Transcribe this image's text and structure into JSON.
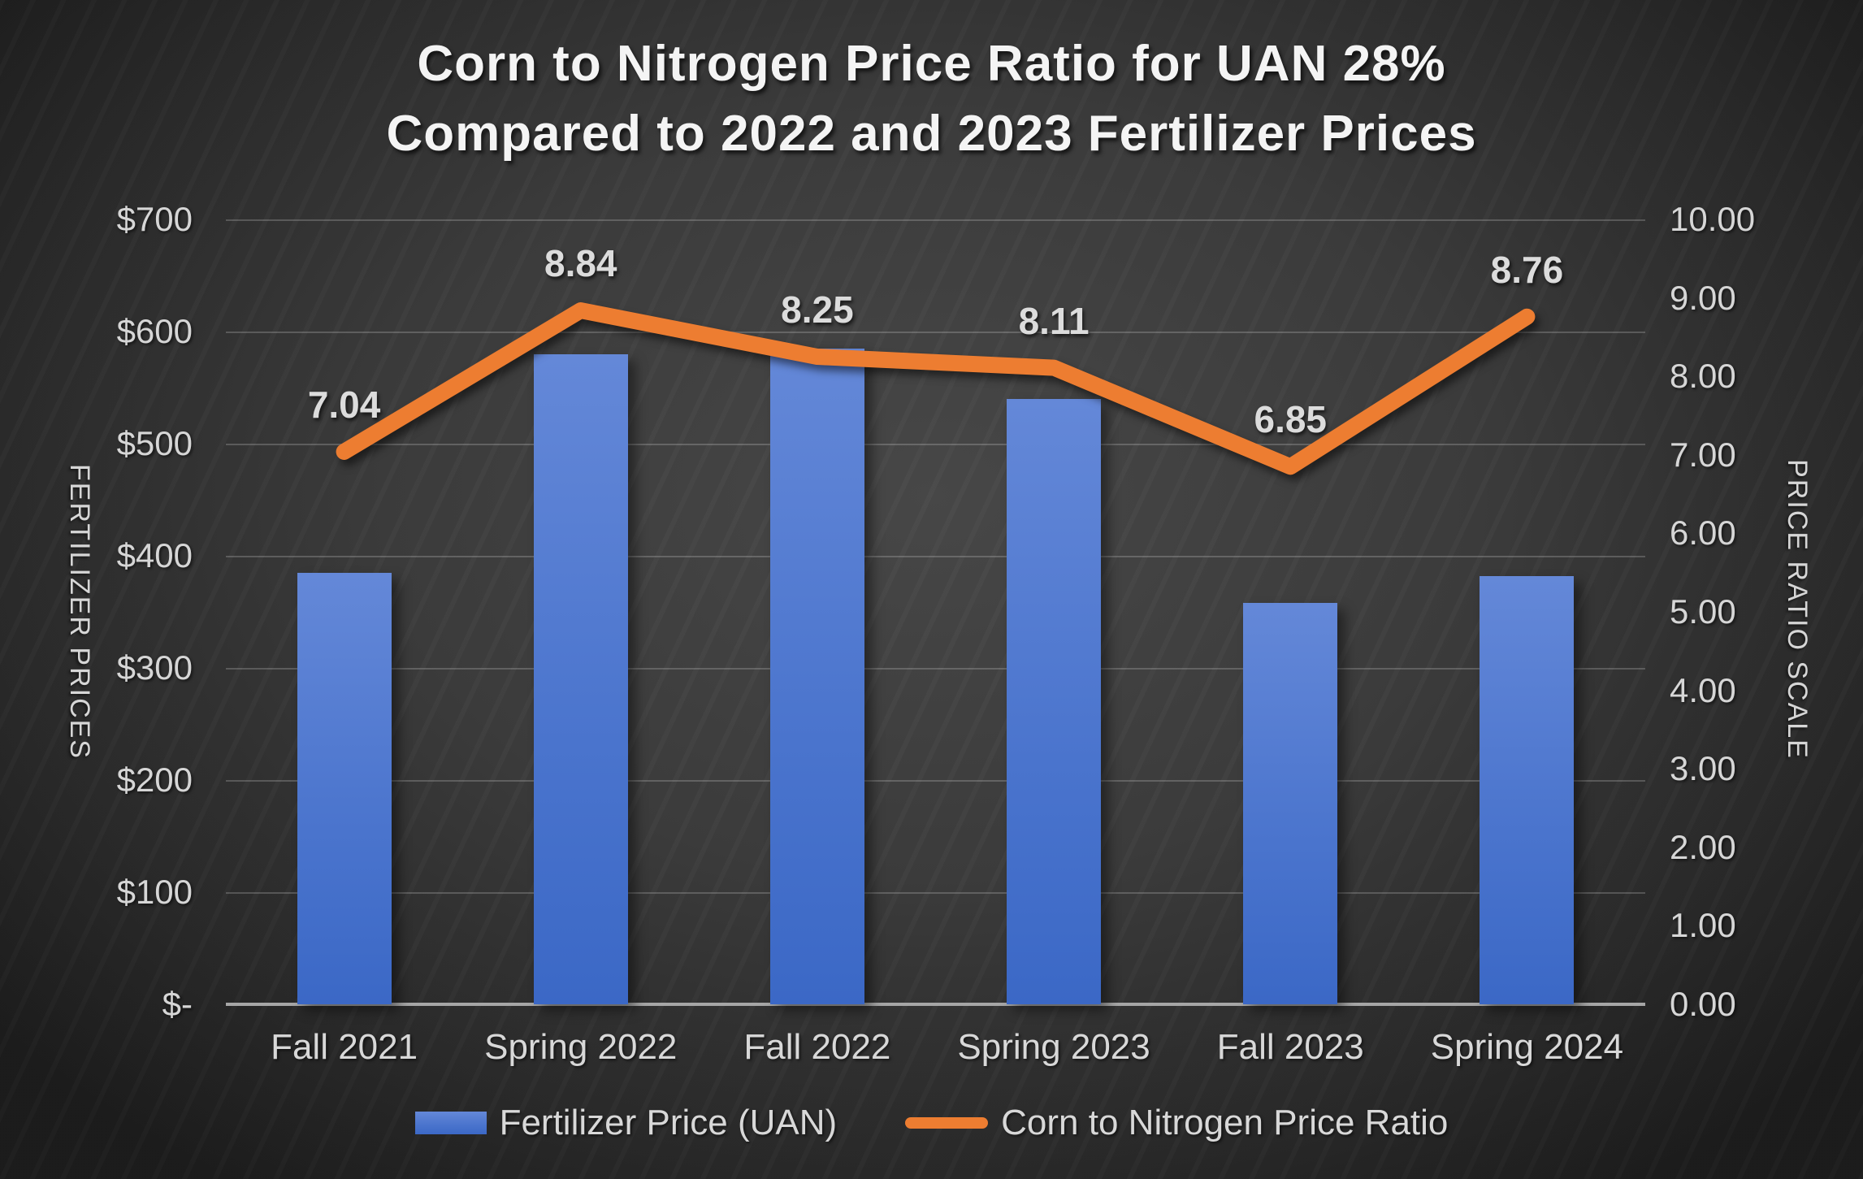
{
  "title": {
    "line1": "Corn to Nitrogen Price Ratio for UAN 28%",
    "line2": "Compared to 2022 and 2023 Fertilizer Prices"
  },
  "colors": {
    "background": "#3c3c3c",
    "bar_fill_top": "#6488d8",
    "bar_fill_bottom": "#3b68c6",
    "line": "#ed7d31",
    "text": "#d6d6d6",
    "title_text": "#f4f4f4",
    "gridline": "rgba(217,217,217,0.24)",
    "axis_line": "#a6a6a6"
  },
  "legend": {
    "items": [
      {
        "label": "Fertilizer Price (UAN)",
        "swatch": "blue-bar"
      },
      {
        "label": "Corn to Nitrogen Price Ratio",
        "swatch": "orange-line"
      }
    ]
  },
  "chart_data": {
    "type": "combo (bar + line)",
    "title": "Corn to Nitrogen Price Ratio for UAN 28% Compared to 2022 and 2023 Fertilizer Prices",
    "categories": [
      "Fall 2021",
      "Spring 2022",
      "Fall 2022",
      "Spring 2023",
      "Fall 2023",
      "Spring 2024"
    ],
    "series": [
      {
        "name": "Fertilizer Price (UAN)",
        "type": "bar",
        "axis": "left",
        "values": [
          385,
          580,
          585,
          540,
          358,
          382
        ]
      },
      {
        "name": "Corn to Nitrogen Price Ratio",
        "type": "line",
        "axis": "right",
        "values": [
          7.04,
          8.84,
          8.25,
          8.11,
          6.85,
          8.76
        ],
        "data_labels": [
          "7.04",
          "8.84",
          "8.25",
          "8.11",
          "6.85",
          "8.76"
        ]
      }
    ],
    "left_axis": {
      "label": "FERTILIZER PRICES",
      "ticks": [
        "$700",
        "$600",
        "$500",
        "$400",
        "$300",
        "$200",
        "$100",
        "$-"
      ],
      "range": [
        0,
        700
      ]
    },
    "right_axis": {
      "label": "PRICE RATIO SCALE",
      "ticks": [
        "10.00",
        "9.00",
        "8.00",
        "7.00",
        "6.00",
        "5.00",
        "4.00",
        "3.00",
        "2.00",
        "1.00",
        "0.00"
      ],
      "range": [
        0,
        10
      ]
    },
    "grid": true,
    "legend_position": "bottom"
  }
}
